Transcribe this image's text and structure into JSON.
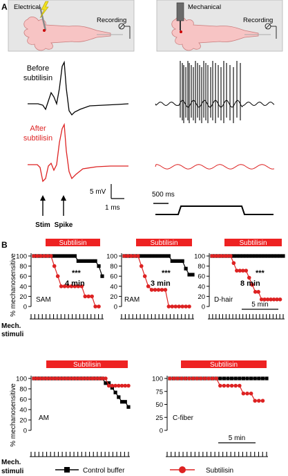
{
  "panel_a": {
    "letter": "A",
    "electrical_label": "Electrical",
    "mechanical_label": "Mechanical",
    "recording_label": "Recording",
    "before_label_1": "Before",
    "before_label_2": "subtilisin",
    "after_label_1": "After",
    "after_label_2": "subtilisin",
    "scale_mv": "5 mV",
    "scale_ms": "1 ms",
    "scale_500ms": "500 ms",
    "stim_label": "Stim",
    "spike_label": "Spike"
  },
  "panel_b": {
    "letter": "B",
    "subtilisin_bar": "Subtilisin",
    "y_axis_label": "% mechanosensitive",
    "mech_stimuli_1": "Mech.",
    "mech_stimuli_2": "stimuli",
    "time_scale": "5 min",
    "significance": "***"
  },
  "legend": {
    "control": "Control buffer",
    "subtilisin": "Subtilisin"
  },
  "colors": {
    "control": "#000000",
    "subtilisin": "#dd2222",
    "bar": "#ee2222",
    "schematic_bg": "#e6e6e6",
    "cell": "#f7c4c4"
  },
  "chart_data": [
    {
      "type": "line",
      "name": "SAM",
      "ylim": [
        0,
        100
      ],
      "yticks": [
        0,
        20,
        40,
        60,
        80,
        100
      ],
      "annotation": "4 min",
      "significance": "***",
      "series": [
        {
          "name": "Control buffer",
          "values": [
            100,
            100,
            100,
            100,
            100,
            100,
            100,
            100,
            100,
            100,
            100,
            100,
            100,
            90,
            90,
            90,
            90,
            90,
            90,
            80,
            60
          ]
        },
        {
          "name": "Subtilisin",
          "values": [
            100,
            100,
            100,
            100,
            100,
            100,
            80,
            60,
            40,
            40,
            40,
            40,
            40,
            40,
            40,
            20,
            20,
            20,
            0,
            0
          ]
        }
      ]
    },
    {
      "type": "line",
      "name": "RAM",
      "ylim": [
        0,
        100
      ],
      "yticks": [
        0,
        20,
        40,
        60,
        80,
        100
      ],
      "annotation": "3 min",
      "significance": "***",
      "series": [
        {
          "name": "Control buffer",
          "values": [
            100,
            100,
            100,
            100,
            100,
            100,
            100,
            100,
            100,
            100,
            100,
            100,
            100,
            100,
            90,
            90,
            90,
            90,
            75,
            63,
            63
          ]
        },
        {
          "name": "Subtilisin",
          "values": [
            100,
            100,
            100,
            100,
            100,
            80,
            60,
            40,
            33,
            33,
            33,
            33,
            33,
            0,
            0,
            0,
            0,
            0,
            0,
            0
          ]
        }
      ]
    },
    {
      "type": "line",
      "name": "D-hair",
      "ylim": [
        0,
        100
      ],
      "yticks": [
        0,
        20,
        40,
        60,
        80,
        100
      ],
      "annotation": "8 min",
      "significance": "***",
      "series": [
        {
          "name": "Control buffer",
          "values": [
            100,
            100,
            100,
            100,
            100,
            100,
            100,
            100,
            100,
            100,
            100,
            100,
            100,
            100,
            100,
            100,
            100,
            100,
            100,
            100,
            100,
            100,
            100,
            100
          ]
        },
        {
          "name": "Subtilisin",
          "values": [
            100,
            100,
            100,
            100,
            100,
            100,
            100,
            86,
            71,
            71,
            71,
            71,
            57,
            43,
            29,
            29,
            14,
            14,
            14,
            14,
            14,
            14,
            14
          ]
        }
      ]
    },
    {
      "type": "line",
      "name": "AM",
      "ylim": [
        0,
        100
      ],
      "yticks": [
        0,
        20,
        40,
        60,
        80,
        100
      ],
      "series": [
        {
          "name": "Control buffer",
          "values": [
            100,
            100,
            100,
            100,
            100,
            100,
            100,
            100,
            100,
            100,
            100,
            100,
            100,
            100,
            100,
            100,
            100,
            100,
            100,
            100,
            100,
            100,
            91,
            91,
            82,
            73,
            64,
            55,
            55,
            45
          ]
        },
        {
          "name": "Subtilisin",
          "values": [
            100,
            100,
            100,
            100,
            100,
            100,
            100,
            100,
            100,
            100,
            100,
            100,
            100,
            100,
            100,
            100,
            100,
            100,
            100,
            100,
            100,
            100,
            100,
            86,
            86,
            86,
            86,
            86,
            86,
            86
          ]
        }
      ]
    },
    {
      "type": "line",
      "name": "C-fiber",
      "ylim": [
        0,
        100
      ],
      "yticks": [
        0,
        25,
        50,
        75,
        100
      ],
      "series": [
        {
          "name": "Control buffer",
          "values": [
            100,
            100,
            100,
            100,
            100,
            100,
            100,
            100,
            100,
            100,
            100,
            100,
            100,
            100,
            100,
            100,
            100,
            100,
            100,
            100,
            100,
            100,
            100,
            100,
            100,
            100
          ]
        },
        {
          "name": "Subtilisin",
          "values": [
            100,
            100,
            100,
            100,
            100,
            100,
            100,
            100,
            100,
            100,
            100,
            100,
            100,
            86,
            86,
            86,
            86,
            86,
            86,
            71,
            71,
            71,
            57,
            57,
            57
          ]
        }
      ]
    }
  ]
}
